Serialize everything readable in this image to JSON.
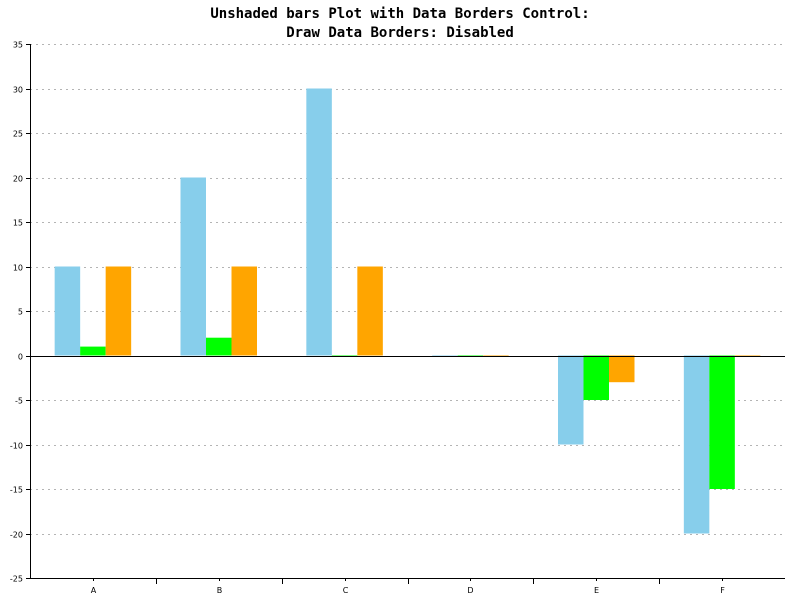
{
  "chart_data": {
    "type": "bar",
    "title": "Unshaded bars Plot with Data Borders Control:",
    "subtitle": "Draw Data Borders: Disabled",
    "xlabel": "",
    "ylabel": "",
    "categories": [
      "A",
      "B",
      "C",
      "D",
      "E",
      "F"
    ],
    "series": [
      {
        "color": "#87ceeb",
        "values": [
          10,
          20,
          30,
          0,
          -10,
          -20
        ]
      },
      {
        "color": "#00ff00",
        "values": [
          1,
          2,
          0,
          0,
          -5,
          -15
        ]
      },
      {
        "color": "#ffa500",
        "values": [
          10,
          10,
          10,
          0,
          -3,
          0
        ]
      }
    ],
    "ylim": [
      -25,
      35
    ],
    "yticks": [
      35,
      30,
      25,
      20,
      15,
      10,
      5,
      0,
      -5,
      -10,
      -15,
      -20,
      -25
    ],
    "grid": true,
    "legend": "none"
  }
}
